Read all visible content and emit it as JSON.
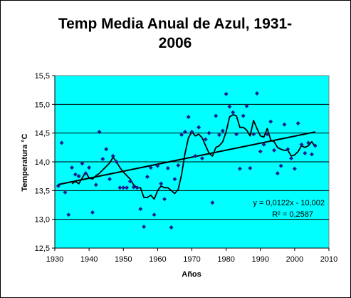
{
  "chart_data": {
    "type": "scatter",
    "title": [
      "Temp Media Anual de Azul, 1931-",
      "2006"
    ],
    "xlabel": "Años",
    "ylabel": "Temperatura °C",
    "xlim": [
      1930,
      2010
    ],
    "ylim": [
      12.5,
      15.5
    ],
    "xticks": [
      "1930",
      "1940",
      "1950",
      "1960",
      "1970",
      "1980",
      "1990",
      "2000",
      "2010"
    ],
    "yticks": [
      "12,5",
      "13,0",
      "13,5",
      "14,0",
      "14,5",
      "15,0",
      "15,5"
    ],
    "grid": "horizontal",
    "colors": {
      "plot_background": "#00ffff",
      "points": "#1f1f8f",
      "lines": "#000000",
      "grid": "#000000"
    },
    "series": [
      {
        "kind": "points",
        "x": [
          1931,
          1932,
          1933,
          1934,
          1935,
          1936,
          1937,
          1938,
          1939,
          1940,
          1941,
          1942,
          1943,
          1944,
          1945,
          1946,
          1947,
          1948,
          1949,
          1950,
          1951,
          1952,
          1953,
          1954,
          1955,
          1956,
          1957,
          1958,
          1959,
          1960,
          1961,
          1962,
          1963,
          1964,
          1965,
          1966,
          1967,
          1968,
          1969,
          1970,
          1971,
          1972,
          1973,
          1974,
          1975,
          1976,
          1977,
          1978,
          1979,
          1980,
          1981,
          1982,
          1983,
          1984,
          1985,
          1986,
          1987,
          1988,
          1989,
          1990,
          1991,
          1992,
          1993,
          1994,
          1995,
          1996,
          1997,
          1998,
          1999,
          2000,
          2001,
          2002,
          2003,
          2004,
          2005,
          2006
        ],
        "y": [
          13.58,
          14.33,
          13.47,
          13.08,
          13.9,
          13.78,
          13.75,
          13.97,
          13.8,
          13.9,
          13.12,
          13.6,
          14.52,
          14.05,
          14.22,
          13.7,
          14.1,
          14.0,
          13.55,
          13.55,
          13.55,
          13.66,
          13.56,
          13.55,
          13.18,
          12.87,
          13.74,
          13.9,
          13.08,
          13.93,
          13.62,
          13.35,
          13.89,
          12.86,
          13.7,
          13.94,
          14.47,
          14.52,
          14.78,
          14.52,
          14.1,
          14.6,
          14.06,
          14.39,
          14.5,
          13.29,
          14.8,
          14.47,
          14.54,
          15.18,
          14.96,
          14.86,
          14.48,
          13.88,
          14.8,
          14.97,
          13.89,
          14.48,
          15.19,
          14.18,
          14.3,
          14.48,
          14.7,
          14.2,
          13.8,
          13.93,
          14.65,
          14.22,
          14.06,
          13.88,
          14.67,
          14.3,
          14.15,
          14.33,
          14.13,
          14.28
        ]
      },
      {
        "kind": "moving-average",
        "x": [
          1935,
          1936,
          1937,
          1938,
          1939,
          1940,
          1941,
          1942,
          1943,
          1944,
          1945,
          1946,
          1947,
          1948,
          1949,
          1950,
          1951,
          1952,
          1953,
          1954,
          1955,
          1956,
          1957,
          1958,
          1959,
          1960,
          1961,
          1962,
          1963,
          1964,
          1965,
          1966,
          1967,
          1968,
          1969,
          1970,
          1971,
          1972,
          1973,
          1974,
          1975,
          1976,
          1977,
          1978,
          1979,
          1980,
          1981,
          1982,
          1983,
          1984,
          1985,
          1986,
          1987,
          1988,
          1989,
          1990,
          1991,
          1992,
          1993,
          1994,
          1995,
          1996,
          1997,
          1998,
          1999,
          2000,
          2001,
          2002,
          2003,
          2004,
          2005,
          2006
        ],
        "y": [
          13.62,
          13.66,
          13.62,
          13.72,
          13.82,
          13.72,
          13.7,
          13.76,
          13.8,
          13.86,
          13.92,
          13.98,
          14.08,
          14.0,
          13.9,
          13.82,
          13.76,
          13.7,
          13.6,
          13.55,
          13.55,
          13.38,
          13.38,
          13.42,
          13.35,
          13.5,
          13.58,
          13.55,
          13.55,
          13.5,
          13.45,
          13.52,
          13.78,
          14.15,
          14.42,
          14.52,
          14.45,
          14.48,
          14.42,
          14.28,
          14.15,
          14.1,
          14.25,
          14.28,
          14.35,
          14.52,
          14.78,
          14.82,
          14.8,
          14.6,
          14.6,
          14.55,
          14.45,
          14.72,
          14.58,
          14.45,
          14.43,
          14.58,
          14.38,
          14.35,
          14.25,
          14.22,
          14.2,
          14.2,
          14.1,
          14.12,
          14.18,
          14.28,
          14.25,
          14.28,
          14.35,
          14.26
        ]
      },
      {
        "kind": "linear-trend",
        "x": [
          1931,
          2006
        ],
        "y": [
          13.605,
          14.52
        ]
      }
    ],
    "annotations": [
      "y = 0,0122x - 10,002",
      "R² = 0,2587"
    ]
  }
}
